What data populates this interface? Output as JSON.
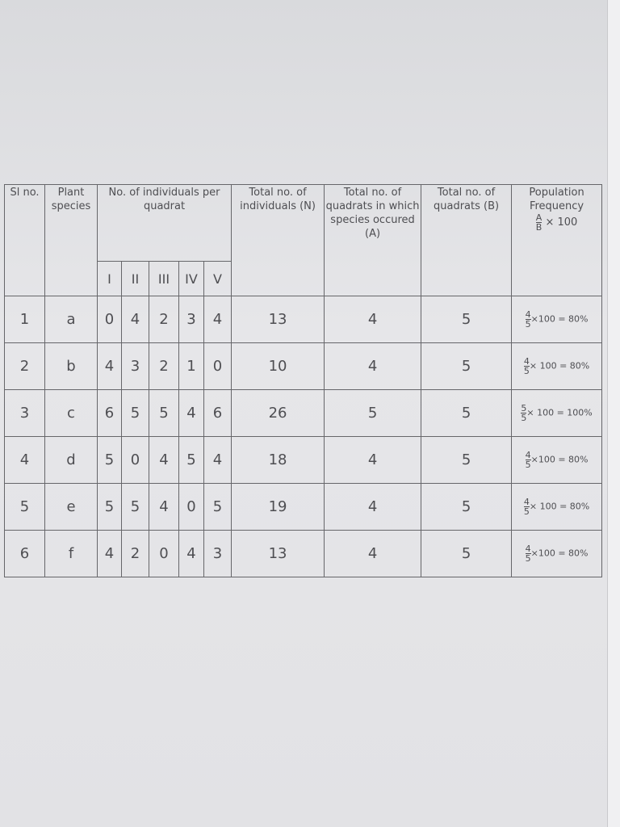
{
  "table": {
    "header": {
      "sl": "Sl no.",
      "species": "Plant species",
      "per_quadrat": "No. of individuals per quadrat",
      "quadrats": [
        "I",
        "II",
        "III",
        "IV",
        "V"
      ],
      "total_n": "Total no. of individuals (N)",
      "total_a": "Total no. of quadrats in which species occured (A)",
      "total_b": "Total no. of quadrats (B)",
      "frequency": "Population Frequency",
      "formula": {
        "numerator": "A",
        "denominator": "B",
        "rest": "× 100"
      }
    },
    "rows": [
      {
        "sl": 1,
        "species": "a",
        "quadrats": [
          0,
          4,
          2,
          3,
          4
        ],
        "total_n": 13,
        "total_a": 4,
        "total_b": 5,
        "frequency": {
          "numerator": "4",
          "denominator": "5",
          "rest": "×100 = 80%"
        }
      },
      {
        "sl": 2,
        "species": "b",
        "quadrats": [
          4,
          3,
          2,
          1,
          0
        ],
        "total_n": 10,
        "total_a": 4,
        "total_b": 5,
        "frequency": {
          "numerator": "4",
          "denominator": "5",
          "rest": "× 100 = 80%"
        }
      },
      {
        "sl": 3,
        "species": "c",
        "quadrats": [
          6,
          5,
          5,
          4,
          6
        ],
        "total_n": 26,
        "total_a": 5,
        "total_b": 5,
        "frequency": {
          "numerator": "5",
          "denominator": "5",
          "rest": "× 100 = 100%"
        }
      },
      {
        "sl": 4,
        "species": "d",
        "quadrats": [
          5,
          0,
          4,
          5,
          4
        ],
        "total_n": 18,
        "total_a": 4,
        "total_b": 5,
        "frequency": {
          "numerator": "4",
          "denominator": "5",
          "rest": "×100 = 80%"
        }
      },
      {
        "sl": 5,
        "species": "e",
        "quadrats": [
          5,
          5,
          4,
          0,
          5
        ],
        "total_n": 19,
        "total_a": 4,
        "total_b": 5,
        "frequency": {
          "numerator": "4",
          "denominator": "5",
          "rest": "× 100 = 80%"
        }
      },
      {
        "sl": 6,
        "species": "f",
        "quadrats": [
          4,
          2,
          0,
          4,
          3
        ],
        "total_n": 13,
        "total_a": 4,
        "total_b": 5,
        "frequency": {
          "numerator": "4",
          "denominator": "5",
          "rest": "×100 = 80%"
        }
      }
    ]
  }
}
